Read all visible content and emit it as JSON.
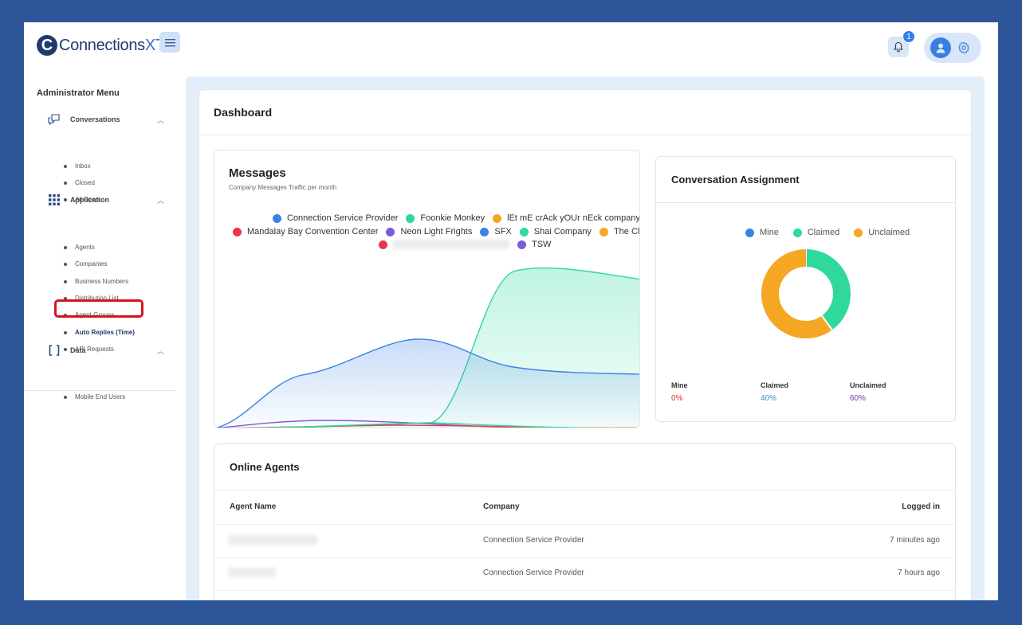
{
  "header": {
    "logo_letter": "C",
    "logo_text": "Connections",
    "logo_suffix": "XT",
    "notification_count": "1"
  },
  "sidebar": {
    "title": "Administrator Menu",
    "sections": [
      {
        "label": "Conversations",
        "icon": "chat-icon",
        "items": [
          "Inbox",
          "Closed",
          "All Open"
        ]
      },
      {
        "label": "Application",
        "icon": "grid-icon",
        "items": [
          "Agents",
          "Companies",
          "Business Numbers",
          "Distribution List",
          "Agent Groups",
          "Auto Replies (Time)",
          "API Requests"
        ]
      },
      {
        "label": "Data",
        "icon": "brackets-icon",
        "items": [
          "Mobile End Users"
        ]
      }
    ],
    "active_item": "Auto Replies (Time)",
    "highlight_color": "#d7141d"
  },
  "dashboard": {
    "title": "Dashboard"
  },
  "messages": {
    "title": "Messages",
    "subtitle": "Company Messages Traffic per month"
  },
  "assignment": {
    "title": "Conversation Assignment",
    "stats": [
      {
        "label": "Mine",
        "value": "0%",
        "color": "#e0312b"
      },
      {
        "label": "Claimed",
        "value": "40%",
        "color": "#2b93c9"
      },
      {
        "label": "Unclaimed",
        "value": "60%",
        "color": "#6a3aa8"
      }
    ]
  },
  "agents": {
    "title": "Online Agents",
    "columns": [
      "Agent Name",
      "Company",
      "Logged in"
    ],
    "rows": [
      {
        "name": "",
        "company": "Connection Service Provider",
        "logged_in": "7 minutes ago"
      },
      {
        "name": "",
        "company": "Connection Service Provider",
        "logged_in": "7 hours ago"
      }
    ]
  },
  "chart_data": [
    {
      "type": "area",
      "title": "Messages",
      "subtitle": "Company Messages Traffic per month",
      "series": [
        {
          "name": "Connection Service Provider",
          "color": "#3b82e6"
        },
        {
          "name": "Foonkie Monkey",
          "color": "#2ed99a"
        },
        {
          "name": "lEt mE crAck yOUr nEck company",
          "color": "#f5a623"
        },
        {
          "name": "Mandalay Bay Convention Center",
          "color": "#e8364f"
        },
        {
          "name": "Neon Light Frights",
          "color": "#7b5cd6"
        },
        {
          "name": "SFX",
          "color": "#3b82e6"
        },
        {
          "name": "Shai Company",
          "color": "#2ed99a"
        },
        {
          "name": "The Cl",
          "color": "#f5a623"
        },
        {
          "name": "",
          "color": "#e8364f"
        },
        {
          "name": "TSW",
          "color": "#7b5cd6"
        }
      ],
      "grid": false,
      "legend": "top"
    },
    {
      "type": "pie",
      "title": "Conversation Assignment",
      "categories": [
        "Mine",
        "Claimed",
        "Unclaimed"
      ],
      "values": [
        0,
        40,
        60
      ],
      "colors": [
        "#3b82e6",
        "#2ed99a",
        "#f5a623"
      ],
      "legend": "top"
    }
  ]
}
